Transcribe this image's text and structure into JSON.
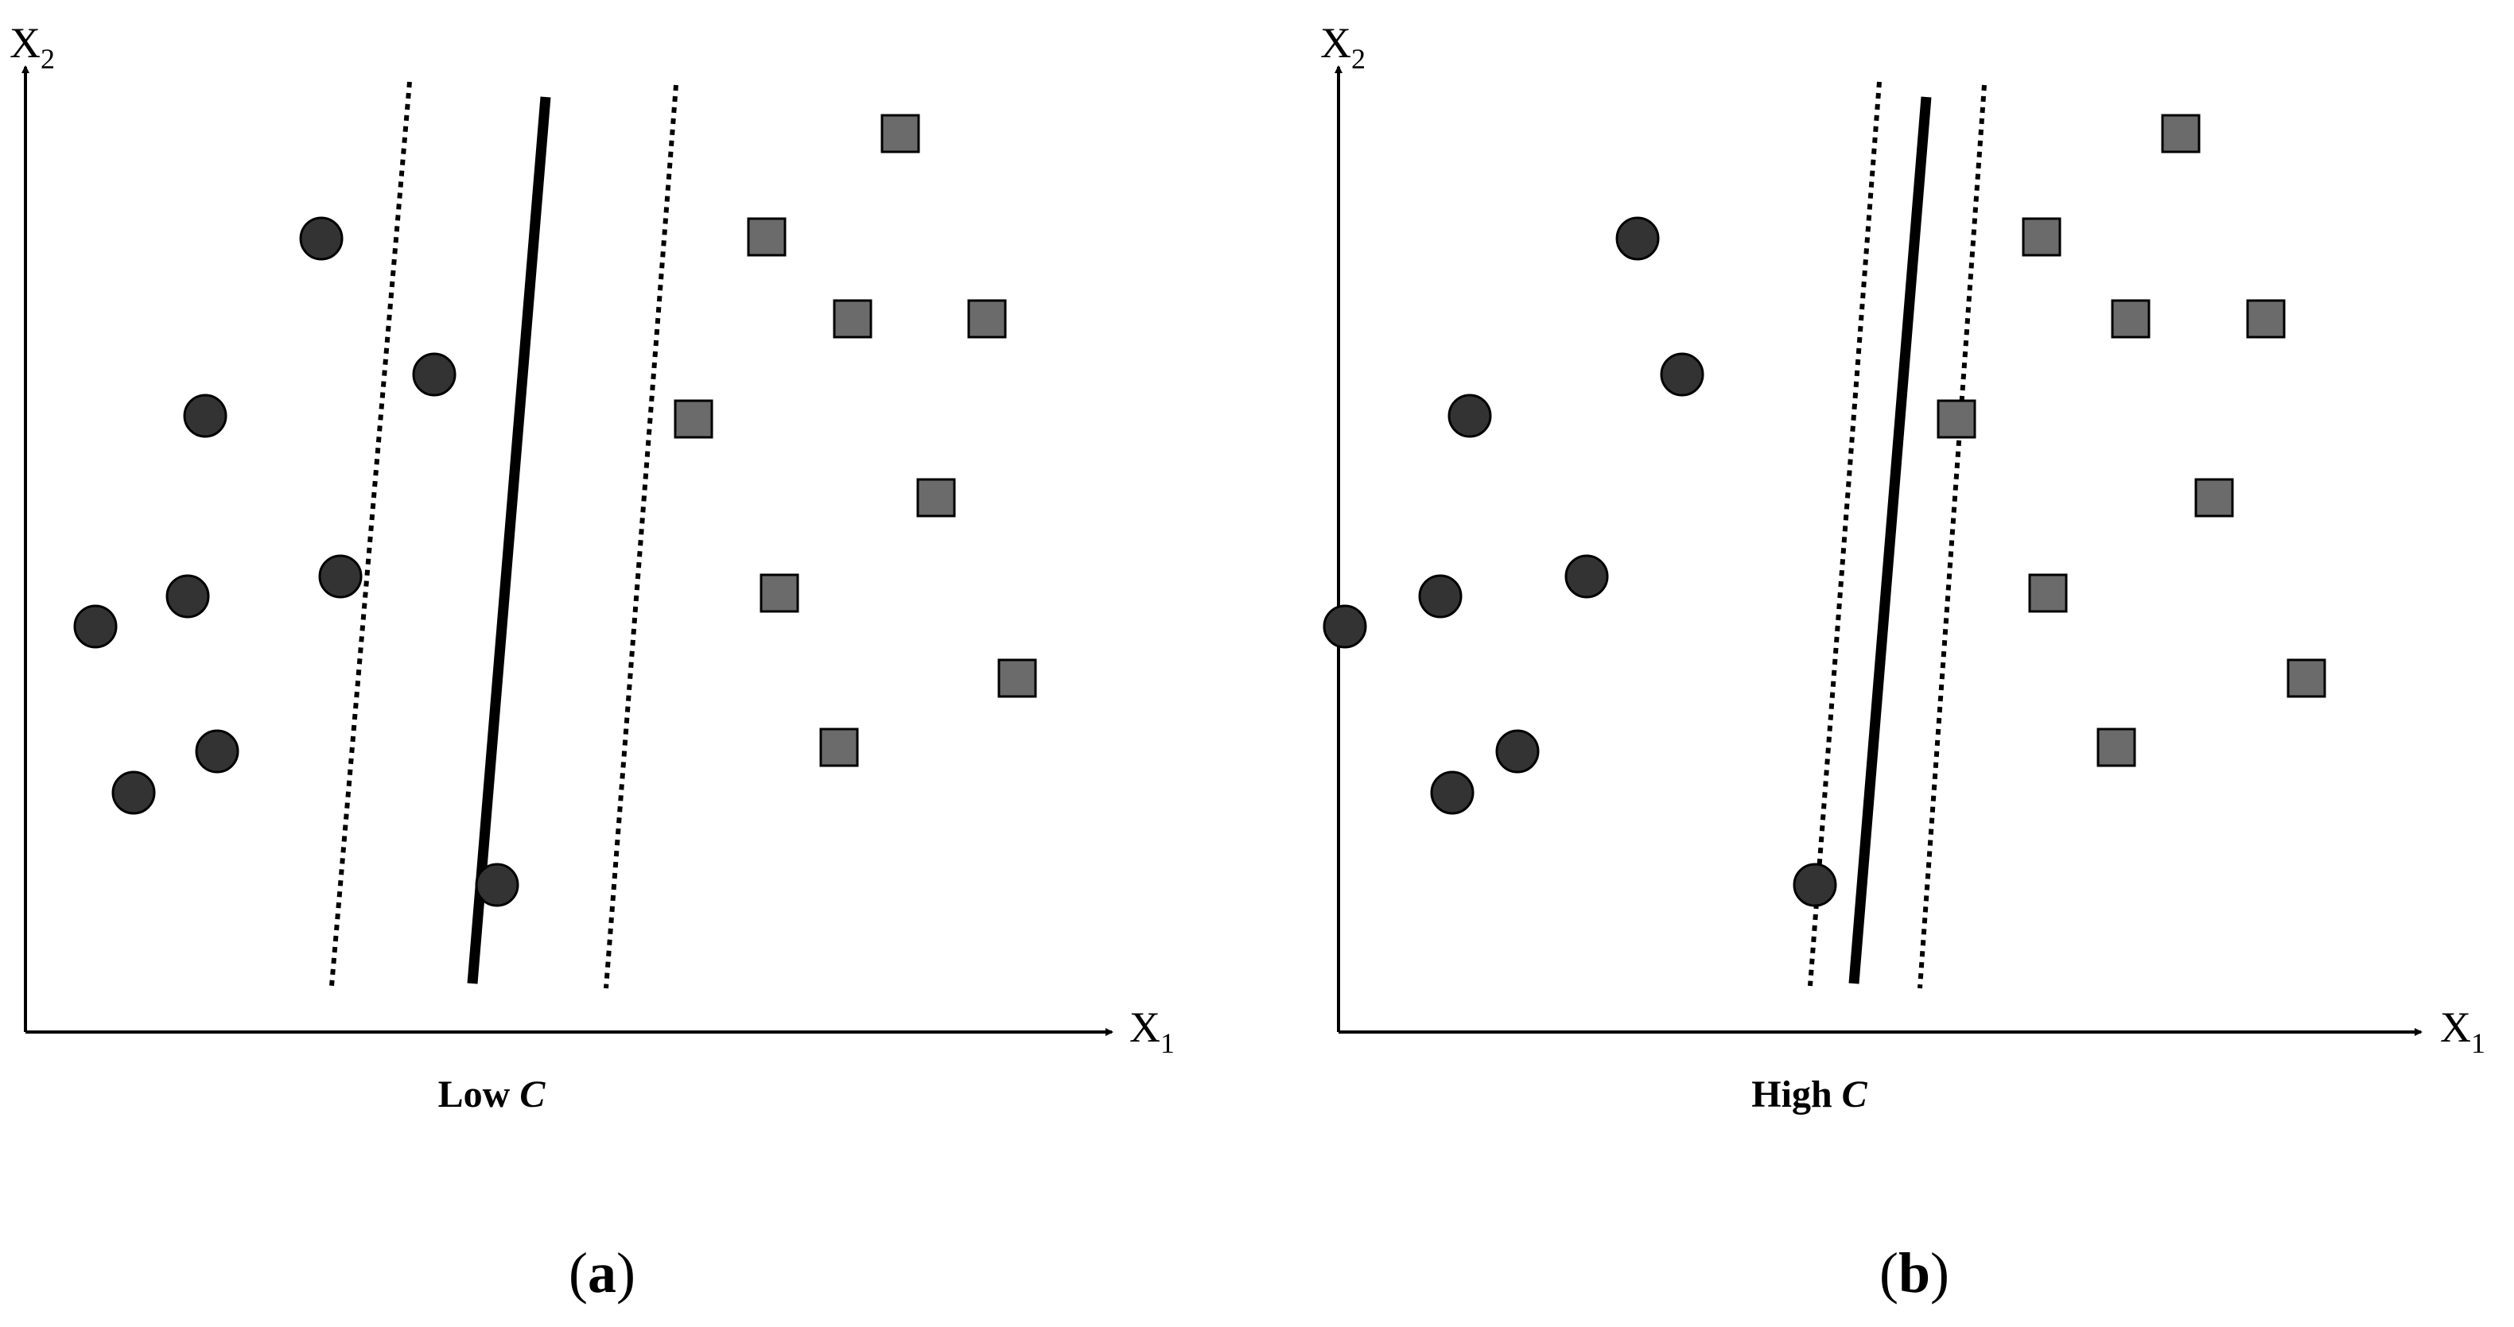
{
  "colors": {
    "circle_fill": "#333333",
    "square_fill": "#6b6b6b",
    "line": "#000000"
  },
  "panels": [
    {
      "id": "a",
      "label_open": "(",
      "label_letter": "a",
      "label_close": ")",
      "caption_prefix": "Low",
      "caption_var": "C",
      "x_axis": {
        "main": "X",
        "sub": "1"
      },
      "y_axis": {
        "main": "X",
        "sub": "2"
      },
      "circles": [
        [
          404,
          300
        ],
        [
          546,
          471
        ],
        [
          258,
          523
        ],
        [
          428,
          725
        ],
        [
          236,
          750
        ],
        [
          120,
          788
        ],
        [
          273,
          945
        ],
        [
          168,
          997
        ],
        [
          625,
          1113
        ]
      ],
      "squares": [
        [
          1132,
          168
        ],
        [
          964,
          298
        ],
        [
          1072,
          401
        ],
        [
          1241,
          401
        ],
        [
          872,
          527
        ],
        [
          1177,
          626
        ],
        [
          980,
          746
        ],
        [
          1279,
          853
        ],
        [
          1055,
          940
        ]
      ],
      "hyperplane": [
        [
          686,
          122
        ],
        [
          594,
          1237
        ]
      ],
      "margins": [
        [
          [
            515,
            103
          ],
          [
            417,
            1240
          ]
        ],
        [
          [
            850,
            107
          ],
          [
            762,
            1243
          ]
        ]
      ]
    },
    {
      "id": "b",
      "label_open": "(",
      "label_letter": "b",
      "label_close": ")",
      "caption_prefix": "High",
      "caption_var": "C",
      "x_axis": {
        "main": "X",
        "sub": "1"
      },
      "y_axis": {
        "main": "X",
        "sub": "2"
      },
      "circles": [
        [
          2059,
          300
        ],
        [
          2115,
          471
        ],
        [
          1848,
          523
        ],
        [
          1995,
          725
        ],
        [
          1811,
          750
        ],
        [
          1691,
          788
        ],
        [
          1908,
          945
        ],
        [
          1826,
          997
        ],
        [
          2282,
          1113
        ]
      ],
      "squares": [
        [
          2742,
          168
        ],
        [
          2567,
          298
        ],
        [
          2679,
          401
        ],
        [
          2849,
          401
        ],
        [
          2460,
          527
        ],
        [
          2784,
          626
        ],
        [
          2575,
          746
        ],
        [
          2900,
          853
        ],
        [
          2661,
          940
        ]
      ],
      "hyperplane": [
        [
          2422,
          122
        ],
        [
          2331,
          1237
        ]
      ],
      "margins": [
        [
          [
            2363,
            103
          ],
          [
            2276,
            1240
          ]
        ],
        [
          [
            2495,
            107
          ],
          [
            2414,
            1243
          ]
        ]
      ]
    }
  ]
}
